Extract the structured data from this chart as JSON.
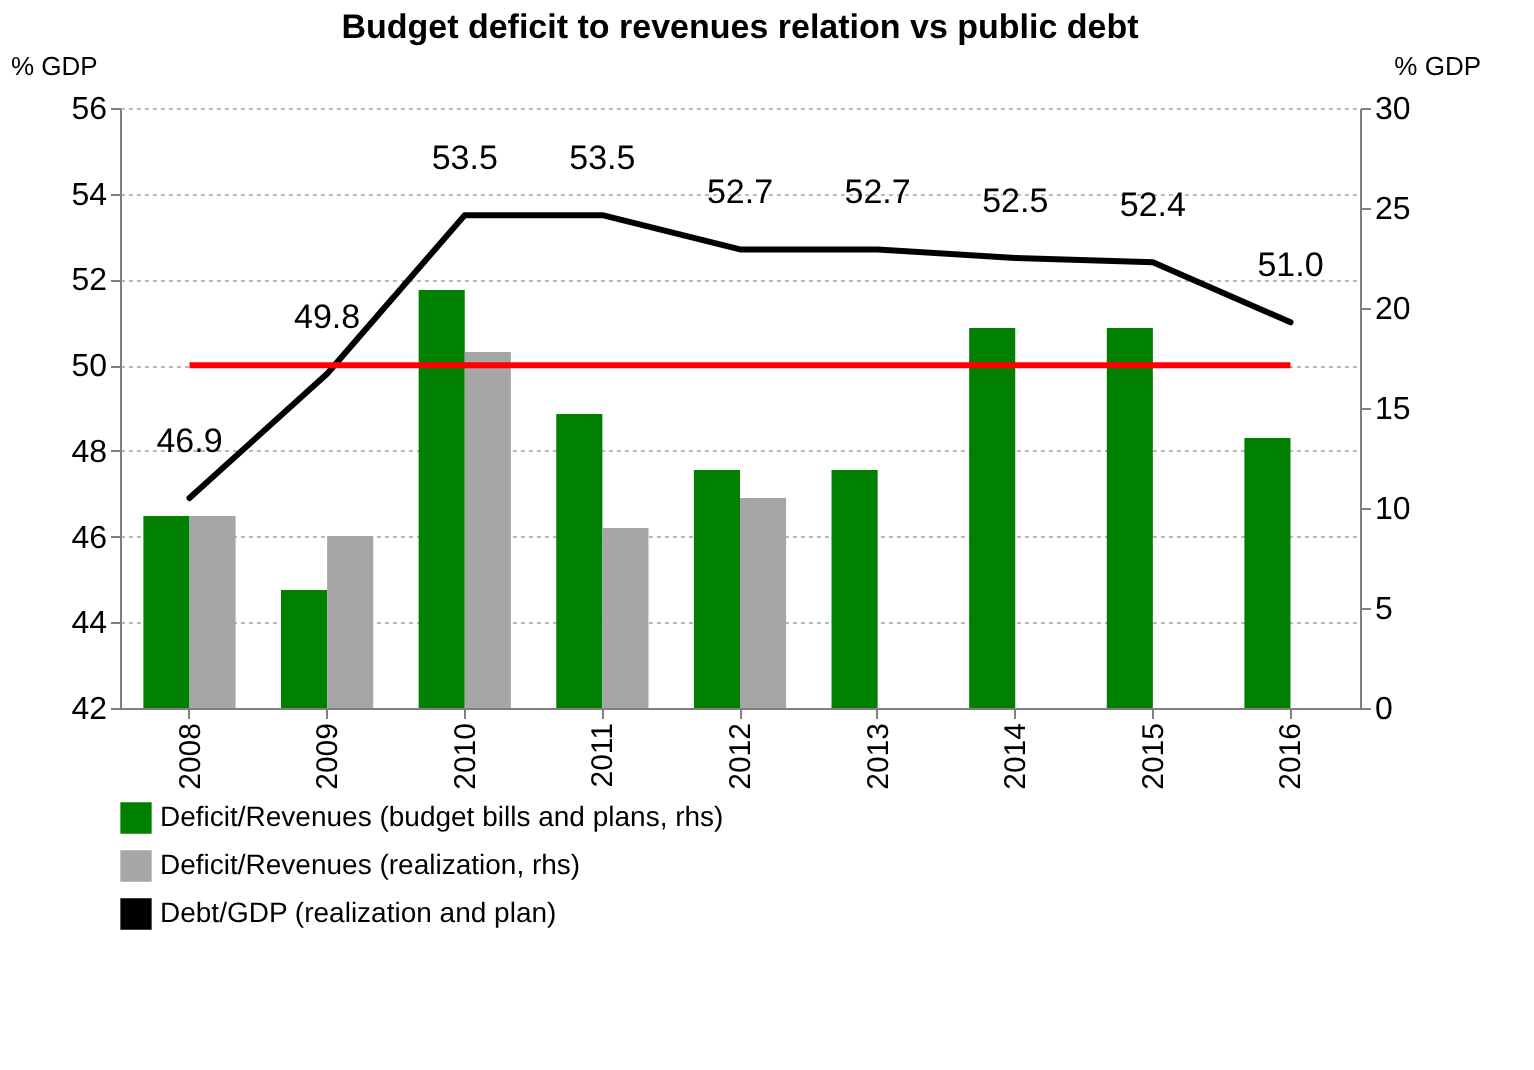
{
  "chart_data": {
    "type": "bar",
    "title": "Budget deficit to revenues relation vs public debt",
    "ylabel": "% GDP",
    "y2label": "% GDP",
    "categories": [
      "2008",
      "2009",
      "2010",
      "2011",
      "2012",
      "2013",
      "2014",
      "2015",
      "2016"
    ],
    "series": [
      {
        "name": "Deficit/Revenues (budget bills and plans, rhs)",
        "color": "#008000",
        "axis": "y2",
        "values": [
          9.6,
          5.9,
          20.9,
          14.7,
          11.9,
          11.9,
          19.0,
          19.0,
          13.5
        ]
      },
      {
        "name": "Deficit/Revenues (realization, rhs)",
        "color": "#a6a6a6",
        "axis": "y2",
        "values": [
          9.6,
          8.6,
          17.8,
          9.0,
          10.5,
          null,
          null,
          null,
          null
        ]
      },
      {
        "name": "Debt/GDP (realization and plan)",
        "type": "line",
        "color": "#000000",
        "values": [
          46.9,
          49.8,
          53.5,
          53.5,
          52.7,
          52.7,
          52.5,
          52.4,
          51.0
        ],
        "value_labels": [
          "46.9",
          "49.8",
          "53.5",
          "53.5",
          "52.7",
          "52.7",
          "52.5",
          "52.4",
          "51.0"
        ]
      }
    ],
    "ylim": [
      42,
      56
    ],
    "yticks": [
      42,
      44,
      46,
      48,
      50,
      52,
      54,
      56
    ],
    "y2lim": [
      0,
      30
    ],
    "y2ticks": [
      0,
      5,
      10,
      15,
      20,
      25,
      30
    ],
    "ref_lines": [
      {
        "axis": "y",
        "value": 50,
        "label": null,
        "color": "#ff0000"
      }
    ],
    "grid": "y",
    "legend": "bottom"
  }
}
